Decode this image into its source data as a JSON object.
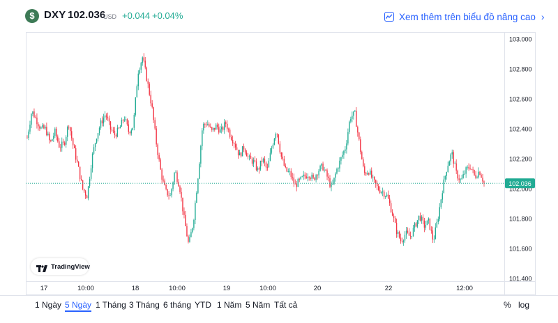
{
  "header": {
    "currency_symbol": "$",
    "symbol": "DXY",
    "price": "102.036",
    "currency": "USD",
    "change": "+0.044",
    "change_percent": "+0.04%",
    "advanced_link": "Xem thêm trên biểu đồ nâng cao"
  },
  "branding": {
    "logo_text": "TradingView"
  },
  "colors": {
    "up": "#22ab94",
    "down": "#f23645",
    "accent": "#2962ff",
    "price_line": "#22ab94"
  },
  "ranges": [
    {
      "label": "1 Ngày",
      "active": false
    },
    {
      "label": "5 Ngày",
      "active": true
    },
    {
      "label": "1 Tháng",
      "active": false
    },
    {
      "label": "3 Tháng",
      "active": false
    },
    {
      "label": "6 tháng",
      "active": false
    },
    {
      "label": "YTD",
      "active": false
    },
    {
      "label": "1 Năm",
      "active": false
    },
    {
      "label": "5 Năm",
      "active": false
    },
    {
      "label": "Tất cả",
      "active": false
    }
  ],
  "options": {
    "percent": "%",
    "log": "log"
  },
  "chart_data": {
    "type": "candlestick",
    "ylim": [
      101.4,
      103.0
    ],
    "y_ticks": [
      "101.400",
      "101.600",
      "101.800",
      "102.000",
      "102.200",
      "102.400",
      "102.600",
      "102.800",
      "103.000"
    ],
    "x_ticks": [
      "17",
      "10:00",
      "18",
      "10:00",
      "19",
      "10:00",
      "20",
      "22",
      "12:00"
    ],
    "last_price_label": "102.036",
    "last_price": 102.036,
    "grid": true,
    "series": [
      {
        "name": "DXY",
        "close": [
          102.34,
          102.52,
          102.46,
          102.4,
          102.4,
          102.3,
          102.38,
          102.28,
          102.3,
          102.44,
          102.28,
          102.15,
          102.0,
          101.95,
          102.2,
          102.35,
          102.44,
          102.5,
          102.4,
          102.36,
          102.4,
          102.48,
          102.38,
          102.42,
          102.78,
          102.88,
          102.72,
          102.55,
          102.3,
          102.1,
          101.98,
          101.95,
          102.12,
          102.02,
          101.8,
          101.62,
          101.78,
          102.08,
          102.42,
          102.44,
          102.38,
          102.42,
          102.38,
          102.44,
          102.36,
          102.3,
          102.22,
          102.28,
          102.2,
          102.18,
          102.12,
          102.2,
          102.12,
          102.28,
          102.4,
          102.22,
          102.12,
          102.1,
          102.02,
          102.05,
          102.08,
          102.1,
          102.06,
          102.12,
          102.15,
          102.08,
          102.0,
          102.12,
          102.2,
          102.28,
          102.48,
          102.5,
          102.3,
          102.1,
          102.12,
          102.05,
          102.0,
          101.98,
          101.95,
          101.85,
          101.72,
          101.65,
          101.7,
          101.68,
          101.75,
          101.82,
          101.75,
          101.78,
          101.65,
          101.8,
          102.0,
          102.15,
          102.24,
          102.1,
          102.05,
          102.12,
          102.15,
          102.08,
          102.12,
          102.04
        ]
      }
    ]
  }
}
